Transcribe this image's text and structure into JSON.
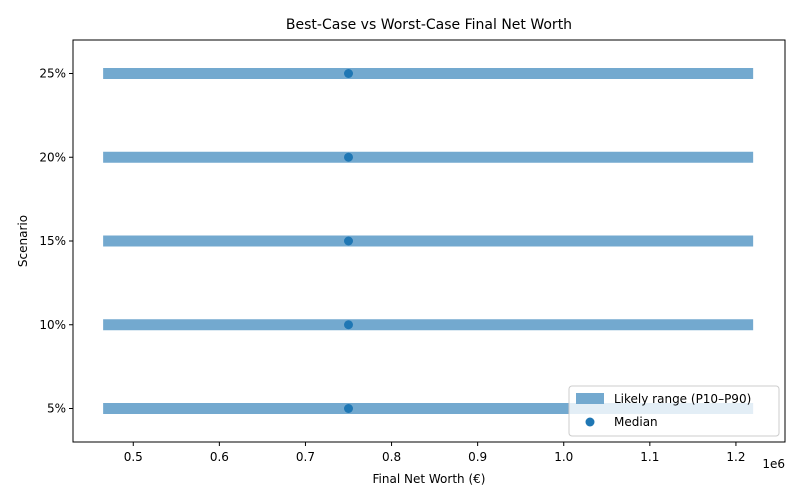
{
  "chart_data": {
    "type": "range",
    "title": "Best-Case vs Worst-Case Final Net Worth",
    "xlabel": "Final Net Worth (€)",
    "ylabel": "Scenario",
    "x_offset_label": "1e6",
    "x_scale": 1000000,
    "xlim": [
      430000,
      1257000
    ],
    "xticks": [
      500000,
      600000,
      700000,
      800000,
      900000,
      1000000,
      1100000,
      1200000
    ],
    "xtick_labels": [
      "0.5",
      "0.6",
      "0.7",
      "0.8",
      "0.9",
      "1.0",
      "1.1",
      "1.2"
    ],
    "categories": [
      "5%",
      "10%",
      "15%",
      "20%",
      "25%"
    ],
    "series": [
      {
        "name": "Likely range (P10–P90)",
        "kind": "range",
        "color": "#73a9cf",
        "low": [
          465000,
          465000,
          465000,
          465000,
          465000
        ],
        "high": [
          1220000,
          1220000,
          1220000,
          1220000,
          1220000
        ]
      },
      {
        "name": "Median",
        "kind": "point",
        "color": "#1f77b4",
        "values": [
          750000,
          750000,
          750000,
          750000,
          750000
        ]
      }
    ],
    "grid": false,
    "legend_position": "bottom-right"
  }
}
